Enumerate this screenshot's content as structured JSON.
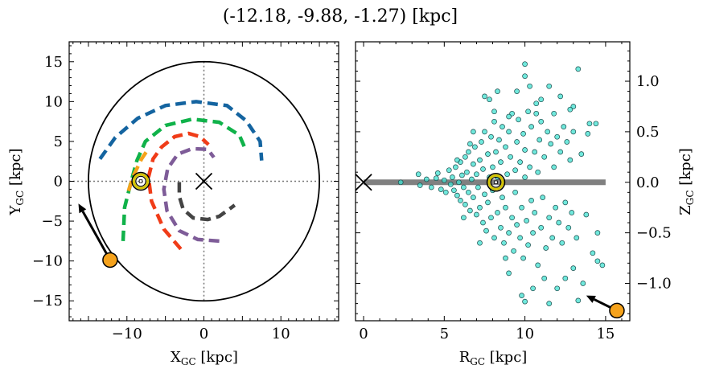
{
  "title": "(-12.18, -9.88, -1.27) [kpc]",
  "chart_data": [
    {
      "type": "line",
      "name": "galactic-plane-xy",
      "xlabel_main": "X",
      "xlabel_sub": "GC",
      "xlabel_unit": " [kpc]",
      "ylabel_main": "Y",
      "ylabel_sub": "GC",
      "ylabel_unit": " [kpc]",
      "xlim": [
        -17.5,
        17.5
      ],
      "ylim": [
        -17.5,
        17.5
      ],
      "xticks": [
        -10,
        0,
        10
      ],
      "yticks": [
        -15,
        -10,
        -5,
        0,
        5,
        10,
        15
      ],
      "xtick_labels": [
        "−10",
        "0",
        "10"
      ],
      "ytick_labels": [
        "−15",
        "−10",
        "−5",
        "0",
        "5",
        "10",
        "15"
      ],
      "outer_circle_radius": 15,
      "galactic_center": [
        0,
        0
      ],
      "sun": [
        -8.2,
        0
      ],
      "target": [
        -12.18,
        -9.88
      ],
      "arrow_tip": [
        -16.3,
        -2.8
      ],
      "spiral_arms": [
        {
          "color": "#1464a0",
          "points": [
            [
              -13.5,
              2.8
            ],
            [
              -11.5,
              5.5
            ],
            [
              -8.6,
              7.9
            ],
            [
              -5,
              9.5
            ],
            [
              -1,
              10
            ],
            [
              3,
              9.5
            ],
            [
              5.5,
              7.6
            ],
            [
              7.3,
              5
            ],
            [
              7.5,
              2.6
            ]
          ]
        },
        {
          "color": "#10b24a",
          "points": [
            [
              -10.5,
              -7.5
            ],
            [
              -10.3,
              -3.3
            ],
            [
              -9.5,
              -0.2
            ],
            [
              -8.7,
              2.6
            ],
            [
              -7.6,
              5
            ],
            [
              -5,
              7
            ],
            [
              -1.5,
              7.8
            ],
            [
              2,
              7.4
            ],
            [
              4.6,
              5.8
            ],
            [
              5.5,
              3.8
            ]
          ]
        },
        {
          "color": "#f5a21c",
          "points": [
            [
              -9.8,
              -1.2
            ],
            [
              -9.1,
              0.8
            ],
            [
              -8.1,
              2.8
            ],
            [
              -7.4,
              3.8
            ]
          ]
        },
        {
          "color": "#f03c18",
          "points": [
            [
              -3,
              -8.5
            ],
            [
              -5.2,
              -6
            ],
            [
              -6.8,
              -2.5
            ],
            [
              -7.2,
              0.5
            ],
            [
              -6.6,
              2.8
            ],
            [
              -5.5,
              4.3
            ],
            [
              -3.8,
              5.6
            ],
            [
              -2,
              6
            ],
            [
              -0.5,
              5.6
            ],
            [
              0.6,
              4.6
            ]
          ]
        },
        {
          "color": "#7e5c98",
          "points": [
            [
              2,
              -7.5
            ],
            [
              -0.8,
              -7.3
            ],
            [
              -3.2,
              -6.2
            ],
            [
              -4.8,
              -3.7
            ],
            [
              -5.2,
              -1
            ],
            [
              -4.7,
              1.6
            ],
            [
              -3.4,
              3.4
            ],
            [
              -1.5,
              4.1
            ],
            [
              0.5,
              4
            ],
            [
              1.3,
              3
            ]
          ]
        },
        {
          "color": "#444444",
          "points": [
            [
              -3.2,
              -0.1
            ],
            [
              -3.2,
              -1.9
            ],
            [
              -2.7,
              -3.5
            ],
            [
              -1.4,
              -4.6
            ],
            [
              0.5,
              -4.8
            ],
            [
              2,
              -4.4
            ],
            [
              4,
              -3
            ]
          ]
        }
      ]
    },
    {
      "type": "scatter",
      "name": "rz-plane",
      "xlabel_main": "R",
      "xlabel_sub": "GC",
      "xlabel_unit": " [kpc]",
      "ylabel_main": "Z",
      "ylabel_sub": "GC",
      "ylabel_unit": " [kpc]",
      "xlim": [
        -0.5,
        16.5
      ],
      "ylim": [
        -1.37,
        1.39
      ],
      "xticks": [
        0,
        5,
        10,
        15
      ],
      "yticks": [
        -1.0,
        -0.5,
        0.0,
        0.5,
        1.0
      ],
      "xtick_labels": [
        "0",
        "5",
        "10",
        "15"
      ],
      "ytick_labels": [
        "−1.0",
        "−0.5",
        "0.0",
        "0.5",
        "1.0"
      ],
      "plane_line": {
        "x": [
          0,
          15
        ],
        "y": 0,
        "color": "#808080"
      },
      "galactic_center": [
        0,
        0
      ],
      "sun": [
        8.2,
        0
      ],
      "target": [
        15.7,
        -1.27
      ],
      "arrow_tip": [
        13.8,
        -1.12
      ],
      "point_color": "#40e0d0",
      "points": [
        [
          2.3,
          0.0
        ],
        [
          3.4,
          0.08
        ],
        [
          3.5,
          -0.03
        ],
        [
          3.9,
          0.03
        ],
        [
          4.2,
          -0.05
        ],
        [
          4.5,
          0.04
        ],
        [
          4.6,
          0.09
        ],
        [
          4.8,
          -0.07
        ],
        [
          5.0,
          0.02
        ],
        [
          5.1,
          -0.1
        ],
        [
          5.3,
          0.12
        ],
        [
          5.4,
          -0.02
        ],
        [
          5.5,
          0.05
        ],
        [
          5.6,
          -0.08
        ],
        [
          5.7,
          0.15
        ],
        [
          5.8,
          -0.13
        ],
        [
          5.9,
          0.0
        ],
        [
          6.0,
          0.2
        ],
        [
          6.0,
          -0.18
        ],
        [
          6.1,
          0.07
        ],
        [
          6.2,
          -0.05
        ],
        [
          6.3,
          0.25
        ],
        [
          6.3,
          -0.22
        ],
        [
          6.4,
          0.1
        ],
        [
          6.5,
          -0.1
        ],
        [
          6.5,
          0.3
        ],
        [
          6.6,
          -0.28
        ],
        [
          6.7,
          0.03
        ],
        [
          6.8,
          0.18
        ],
        [
          6.8,
          -0.15
        ],
        [
          6.9,
          0.35
        ],
        [
          7.0,
          -0.32
        ],
        [
          7.0,
          0.08
        ],
        [
          7.1,
          -0.05
        ],
        [
          7.2,
          0.22
        ],
        [
          7.2,
          -0.25
        ],
        [
          7.3,
          0.4
        ],
        [
          7.4,
          -0.4
        ],
        [
          7.4,
          0.13
        ],
        [
          7.5,
          -0.12
        ],
        [
          7.5,
          0.5
        ],
        [
          7.6,
          -0.48
        ],
        [
          7.7,
          0.28
        ],
        [
          7.7,
          -0.2
        ],
        [
          7.8,
          0.05
        ],
        [
          7.9,
          0.45
        ],
        [
          7.9,
          -0.35
        ],
        [
          8.0,
          0.15
        ],
        [
          8.0,
          -0.08
        ],
        [
          8.1,
          0.6
        ],
        [
          8.1,
          -0.55
        ],
        [
          8.2,
          0.3
        ],
        [
          8.3,
          -0.3
        ],
        [
          8.3,
          0.05
        ],
        [
          8.4,
          0.42
        ],
        [
          8.5,
          -0.45
        ],
        [
          8.5,
          0.2
        ],
        [
          8.6,
          -0.15
        ],
        [
          8.6,
          0.55
        ],
        [
          8.7,
          -0.6
        ],
        [
          8.8,
          0.35
        ],
        [
          8.8,
          -0.25
        ],
        [
          8.9,
          0.08
        ],
        [
          9.0,
          0.5
        ],
        [
          9.0,
          -0.5
        ],
        [
          9.1,
          0.25
        ],
        [
          9.2,
          -0.35
        ],
        [
          9.2,
          0.68
        ],
        [
          9.3,
          -0.68
        ],
        [
          9.4,
          0.12
        ],
        [
          9.4,
          -0.1
        ],
        [
          9.5,
          0.4
        ],
        [
          9.5,
          -0.42
        ],
        [
          9.6,
          0.62
        ],
        [
          9.7,
          -0.55
        ],
        [
          9.7,
          0.2
        ],
        [
          9.8,
          -0.25
        ],
        [
          9.9,
          0.48
        ],
        [
          9.9,
          -0.75
        ],
        [
          10.0,
          0.05
        ],
        [
          10.0,
          0.32
        ],
        [
          10.1,
          -0.38
        ],
        [
          10.2,
          0.7
        ],
        [
          10.2,
          -0.62
        ],
        [
          10.3,
          0.15
        ],
        [
          10.4,
          -0.18
        ],
        [
          10.4,
          0.55
        ],
        [
          10.5,
          -0.5
        ],
        [
          10.6,
          0.3
        ],
        [
          10.6,
          -0.3
        ],
        [
          10.7,
          0.78
        ],
        [
          10.8,
          -0.82
        ],
        [
          10.8,
          0.1
        ],
        [
          10.9,
          0.42
        ],
        [
          11.0,
          -0.45
        ],
        [
          11.0,
          0.6
        ],
        [
          11.1,
          -0.15
        ],
        [
          11.2,
          0.25
        ],
        [
          11.3,
          -0.65
        ],
        [
          11.4,
          0.5
        ],
        [
          11.5,
          -0.35
        ],
        [
          11.6,
          0.38
        ],
        [
          11.7,
          -0.55
        ],
        [
          11.8,
          0.15
        ],
        [
          11.9,
          -0.25
        ],
        [
          12.0,
          0.45
        ],
        [
          12.1,
          -0.4
        ],
        [
          12.2,
          0.3
        ],
        [
          12.3,
          -0.6
        ],
        [
          12.4,
          0.55
        ],
        [
          12.5,
          -0.2
        ],
        [
          12.6,
          0.4
        ],
        [
          12.7,
          -0.45
        ],
        [
          12.8,
          0.22
        ],
        [
          12.9,
          -0.3
        ],
        [
          13.0,
          0.5
        ],
        [
          13.2,
          -0.55
        ],
        [
          13.5,
          0.28
        ],
        [
          13.8,
          -0.32
        ],
        [
          14.0,
          0.58
        ],
        [
          14.2,
          -0.7
        ],
        [
          14.5,
          -0.5
        ],
        [
          13.0,
          -0.85
        ],
        [
          12.0,
          -1.05
        ],
        [
          11.2,
          -0.95
        ],
        [
          10.5,
          -1.05
        ],
        [
          9.8,
          -1.12
        ],
        [
          10.0,
          -1.18
        ],
        [
          11.5,
          -1.2
        ],
        [
          12.5,
          -0.95
        ],
        [
          13.6,
          -1.0
        ],
        [
          14.5,
          -0.78
        ],
        [
          14.8,
          -0.82
        ],
        [
          13.3,
          -1.17
        ],
        [
          9.0,
          -0.9
        ],
        [
          8.8,
          -0.75
        ],
        [
          10.0,
          1.17
        ],
        [
          10.0,
          1.05
        ],
        [
          11.5,
          0.95
        ],
        [
          13.3,
          1.12
        ],
        [
          7.8,
          0.82
        ],
        [
          8.1,
          0.7
        ],
        [
          10.3,
          0.95
        ],
        [
          11.0,
          0.82
        ],
        [
          12.2,
          0.85
        ],
        [
          13.0,
          0.75
        ],
        [
          14.4,
          0.58
        ],
        [
          6.6,
          0.38
        ],
        [
          6.2,
          -0.35
        ],
        [
          5.8,
          0.22
        ],
        [
          7.5,
          0.85
        ],
        [
          9.5,
          0.9
        ],
        [
          11.8,
          0.68
        ],
        [
          12.8,
          0.72
        ],
        [
          13.9,
          0.48
        ],
        [
          8.3,
          0.9
        ],
        [
          9.0,
          0.65
        ],
        [
          10.7,
          0.68
        ],
        [
          6.8,
          0.5
        ],
        [
          7.2,
          -0.6
        ]
      ]
    }
  ]
}
